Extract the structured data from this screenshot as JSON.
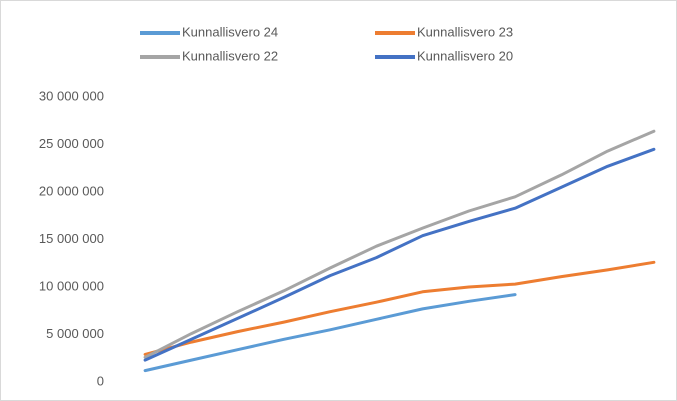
{
  "chart_data": {
    "type": "line",
    "categories": [
      null,
      null,
      null,
      null,
      null,
      null,
      null,
      null,
      null,
      null,
      null,
      null
    ],
    "series": [
      {
        "name": "Kunnallisvero 24",
        "color": "#5b9bd5",
        "values": [
          1200000,
          2300000,
          3400000,
          4500000,
          5500000,
          6600000,
          7700000,
          8500000,
          9200000,
          null,
          null,
          null
        ]
      },
      {
        "name": "Kunnallisvero 23",
        "color": "#ed7d31",
        "values": [
          2900000,
          4200000,
          5300000,
          6300000,
          7400000,
          8400000,
          9500000,
          10000000,
          10300000,
          11100000,
          11800000,
          12600000
        ]
      },
      {
        "name": "Kunnallisvero 22",
        "color": "#a5a5a5",
        "values": [
          2600000,
          5100000,
          7400000,
          9600000,
          12000000,
          14300000,
          16200000,
          18000000,
          19500000,
          21800000,
          24300000,
          26400000
        ]
      },
      {
        "name": "Kunnallisvero 20",
        "color": "#4472c4",
        "values": [
          2300000,
          4500000,
          6700000,
          8900000,
          11200000,
          13100000,
          15400000,
          16900000,
          18300000,
          20500000,
          22700000,
          24500000
        ]
      }
    ],
    "ylim": [
      0,
      30000000
    ],
    "yticks": [
      0,
      {
        "value": 5000000,
        "label": "5 000 000"
      },
      {
        "value": 10000000,
        "label": "10 000 000"
      },
      {
        "value": 15000000,
        "label": "15 000 000"
      },
      {
        "value": 20000000,
        "label": "20 000 000"
      },
      {
        "value": 25000000,
        "label": "25 000 000"
      },
      {
        "value": 30000000,
        "label": "30 000 000"
      }
    ],
    "grid": false,
    "legend": "top"
  }
}
